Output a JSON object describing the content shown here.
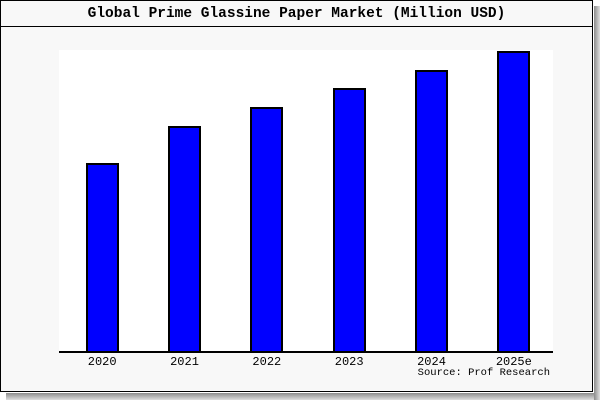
{
  "window": {
    "background_color": "#f8f8f8",
    "plot_background_color": "#ffffff",
    "frame_border_color": "#000000",
    "shadow_color": "#8c8c8c"
  },
  "header": {
    "title": "Global Prime Glassine Paper Market (Million USD)"
  },
  "footer": {
    "source": "Source: Prof Research"
  },
  "chart_data": {
    "type": "bar",
    "title": "Global Prime Glassine Paper Market (Million USD)",
    "categories": [
      "2020",
      "2021",
      "2022",
      "2023",
      "2024",
      "2025e"
    ],
    "values": [
      62.7,
      75.0,
      81.3,
      87.7,
      93.7,
      100.0
    ],
    "values_unit": "relative (% of 2025e bar height; y-axis has no ticks or labels in image)",
    "xlabel": "",
    "ylabel": "",
    "ylim": [
      0,
      100
    ],
    "grid": false,
    "legend": false,
    "y_axis_visible": false,
    "x_axis_line": true,
    "bar_fill_color": "#0000ff",
    "bar_border_color": "#000000",
    "source": "Source: Prof Research"
  }
}
